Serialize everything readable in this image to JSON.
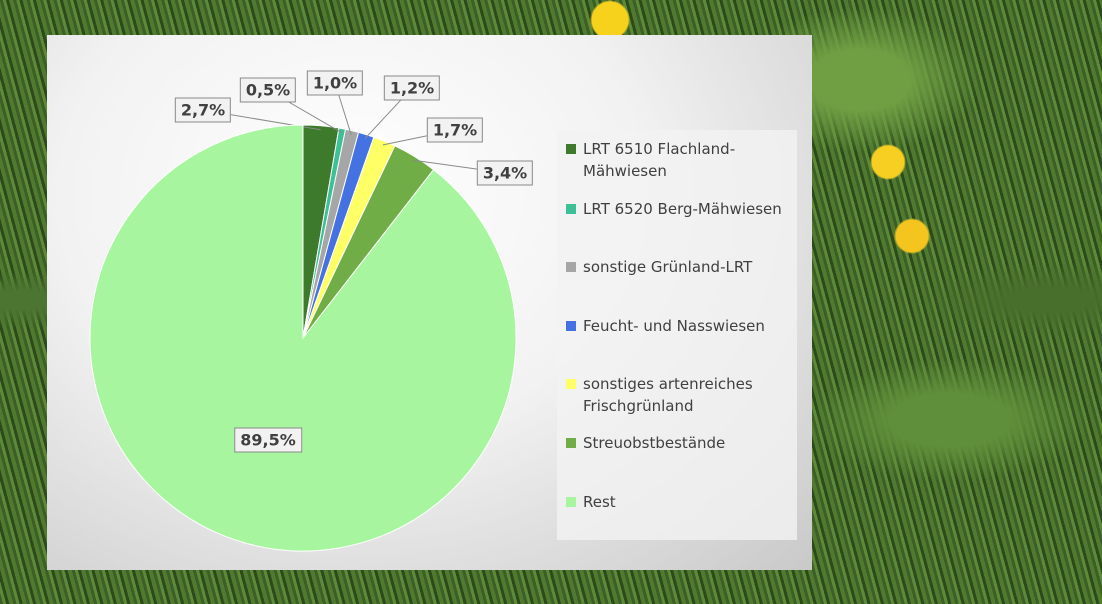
{
  "chart_data": {
    "type": "pie",
    "categories": [
      "LRT 6510 Flachland-Mähwiesen",
      "LRT 6520 Berg-Mähwiesen",
      "sonstige Grünland-LRT",
      "Feucht- und Nasswiesen",
      "sonstiges artenreiches Frischgrünland",
      "Streuobstbestände",
      "Rest"
    ],
    "values": [
      2.7,
      0.5,
      1.0,
      1.2,
      1.7,
      3.4,
      89.5
    ],
    "value_labels": [
      "2,7%",
      "0,5%",
      "1,0%",
      "1,2%",
      "1,7%",
      "3,4%",
      "89,5%"
    ],
    "colors": [
      "#3d7a2c",
      "#3cc095",
      "#a6a6a6",
      "#4472e2",
      "#ffff66",
      "#70ad47",
      "#a8f5a0"
    ],
    "legend": "right"
  }
}
